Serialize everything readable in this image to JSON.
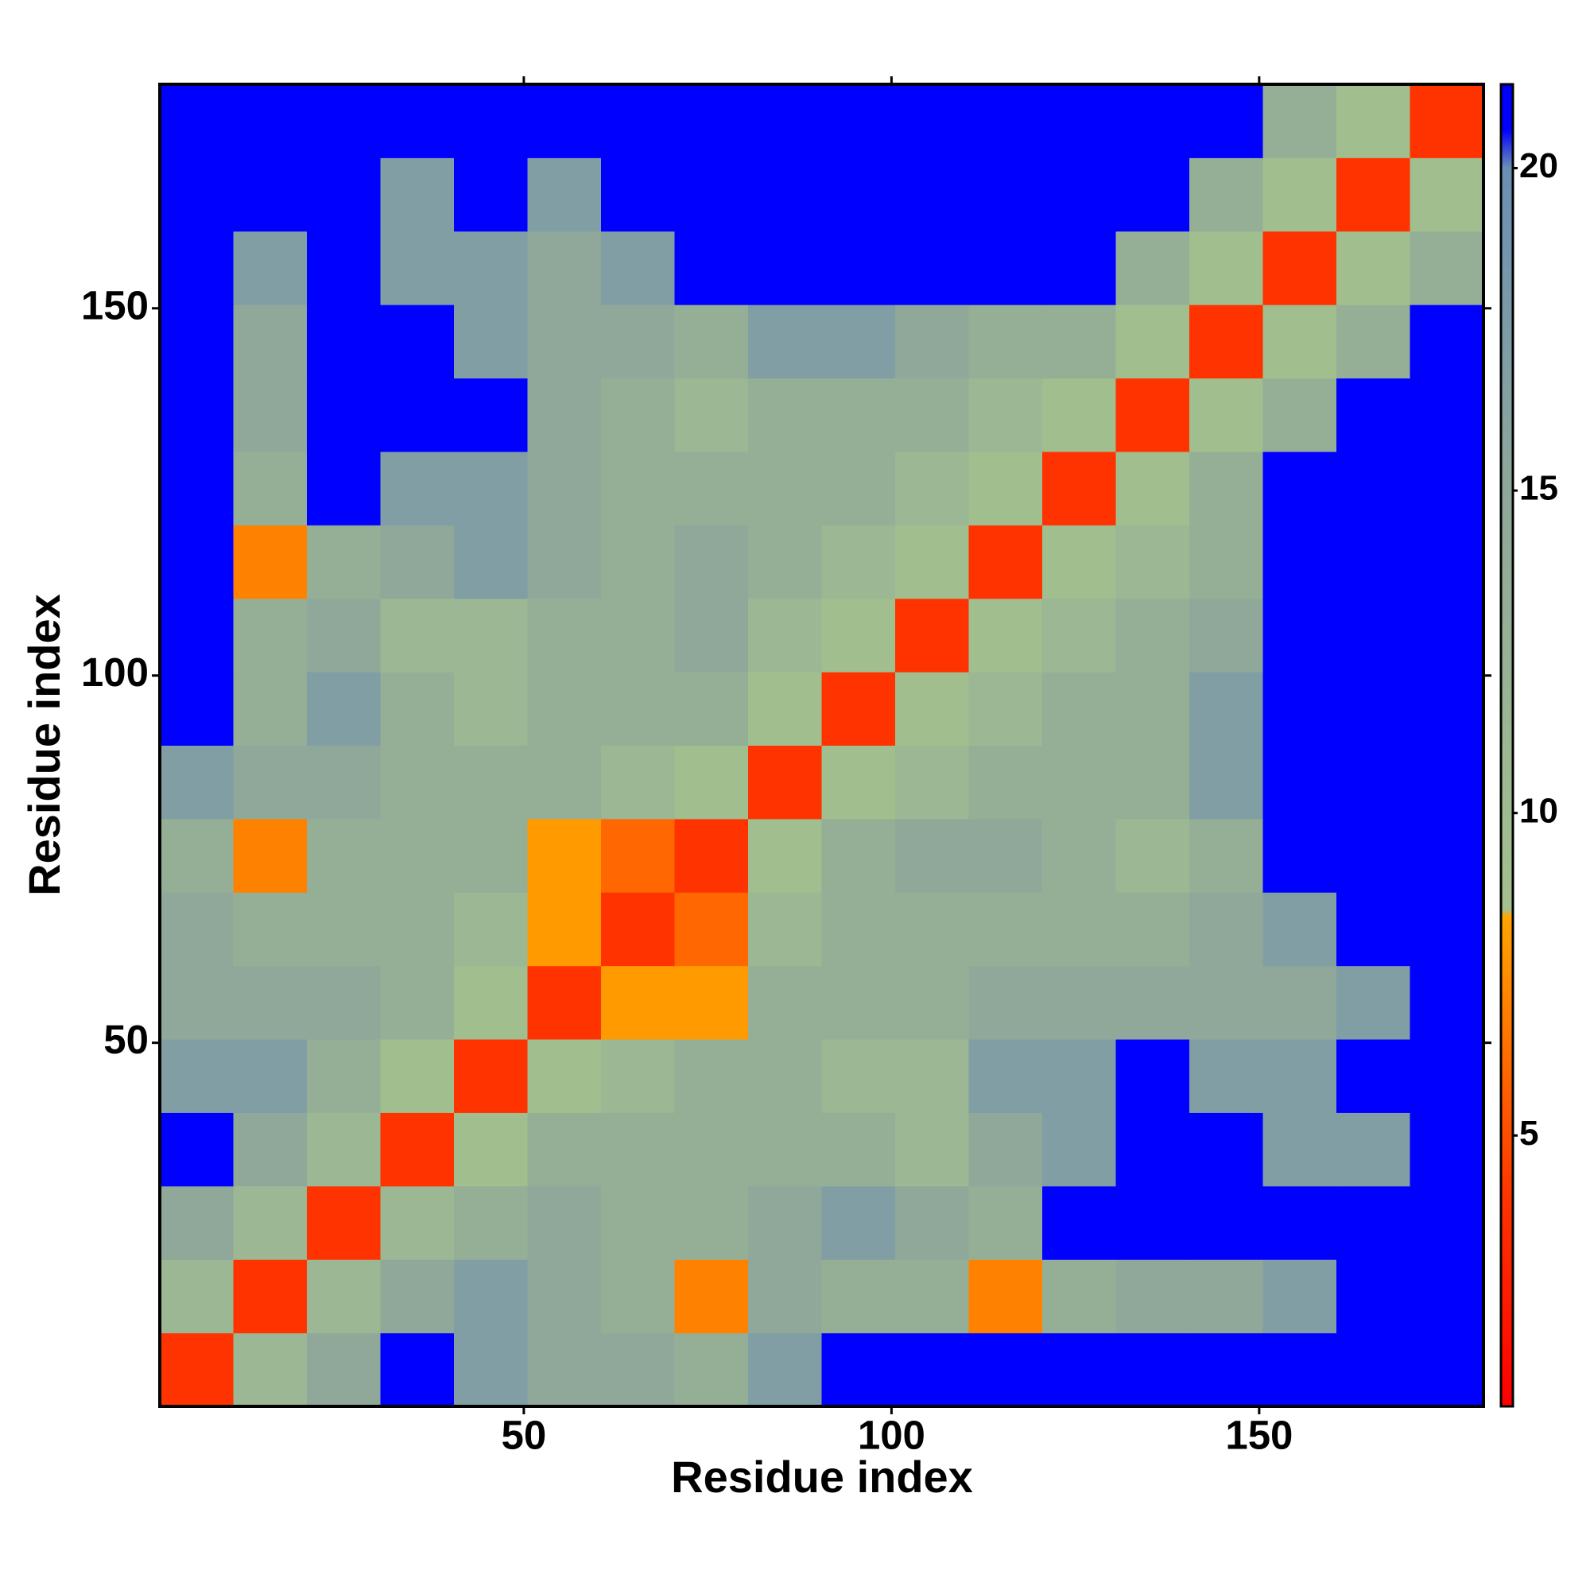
{
  "chart_data": {
    "type": "heatmap",
    "x_label": "Residue index",
    "y_label": "Residue index",
    "x": [
      5.5,
      15.5,
      25.5,
      35.5,
      45.5,
      55.5,
      65.5,
      75.5,
      85.5,
      95.5,
      105.5,
      115.5,
      125.5,
      135.5,
      145.5,
      155.5,
      165.5,
      175.5
    ],
    "y": [
      5.5,
      15.5,
      25.5,
      35.5,
      45.5,
      55.5,
      65.5,
      75.5,
      85.5,
      95.5,
      105.5,
      115.5,
      125.5,
      135.5,
      145.5,
      155.5,
      165.5,
      175.5
    ],
    "xlim": [
      0.5,
      180.5
    ],
    "ylim": [
      0.5,
      180.5
    ],
    "xticks": [
      50,
      100,
      150
    ],
    "yticks": [
      50,
      100,
      150
    ],
    "z": [
      [
        4,
        11,
        15,
        21,
        17,
        15,
        15,
        13,
        17,
        21,
        21,
        21,
        21,
        21,
        21,
        21,
        21,
        21
      ],
      [
        11,
        4,
        11,
        15,
        17,
        15,
        13,
        7,
        15,
        13,
        13,
        7,
        13,
        15,
        15,
        17,
        21,
        21
      ],
      [
        15,
        11,
        4,
        11,
        13,
        15,
        13,
        13,
        15,
        17,
        15,
        13,
        21,
        21,
        21,
        21,
        21,
        21
      ],
      [
        21,
        15,
        11,
        4,
        9,
        13,
        13,
        13,
        13,
        13,
        11,
        15,
        17,
        21,
        21,
        17,
        17,
        21
      ],
      [
        17,
        17,
        13,
        9,
        4,
        9,
        11,
        13,
        13,
        11,
        11,
        17,
        17,
        21,
        17,
        17,
        21,
        21
      ],
      [
        15,
        15,
        15,
        13,
        9,
        4,
        8,
        8,
        13,
        13,
        13,
        15,
        15,
        15,
        15,
        15,
        17,
        21
      ],
      [
        15,
        13,
        13,
        13,
        11,
        8,
        4,
        6,
        11,
        13,
        13,
        13,
        13,
        13,
        15,
        17,
        21,
        21
      ],
      [
        13,
        7,
        13,
        13,
        13,
        8,
        6,
        4,
        9,
        13,
        15,
        15,
        13,
        11,
        13,
        21,
        21,
        21
      ],
      [
        17,
        15,
        15,
        13,
        13,
        13,
        11,
        9,
        4,
        9,
        11,
        13,
        13,
        13,
        17,
        21,
        21,
        21
      ],
      [
        21,
        13,
        17,
        13,
        11,
        13,
        13,
        13,
        9,
        4,
        9,
        11,
        13,
        13,
        17,
        21,
        21,
        21
      ],
      [
        21,
        13,
        15,
        11,
        11,
        13,
        13,
        15,
        11,
        9,
        4,
        9,
        11,
        13,
        15,
        21,
        21,
        21
      ],
      [
        21,
        7,
        13,
        15,
        17,
        15,
        13,
        15,
        13,
        11,
        9,
        4,
        9,
        11,
        13,
        21,
        21,
        21
      ],
      [
        21,
        13,
        21,
        17,
        17,
        15,
        13,
        13,
        13,
        13,
        11,
        9,
        4,
        9,
        13,
        21,
        21,
        21
      ],
      [
        21,
        15,
        21,
        21,
        21,
        15,
        13,
        11,
        13,
        13,
        13,
        11,
        9,
        4,
        9,
        13,
        21,
        21
      ],
      [
        21,
        15,
        21,
        21,
        17,
        15,
        15,
        13,
        17,
        17,
        15,
        13,
        13,
        9,
        4,
        9,
        13,
        21
      ],
      [
        21,
        17,
        21,
        17,
        17,
        15,
        17,
        21,
        21,
        21,
        21,
        21,
        21,
        13,
        9,
        4,
        9,
        13
      ],
      [
        21,
        21,
        21,
        17,
        21,
        17,
        21,
        21,
        21,
        21,
        21,
        21,
        21,
        21,
        13,
        9,
        4,
        9
      ],
      [
        21,
        21,
        21,
        21,
        21,
        21,
        21,
        21,
        21,
        21,
        21,
        21,
        21,
        21,
        21,
        13,
        9,
        4
      ]
    ],
    "zlim": [
      0.8,
      21.3
    ],
    "zticks": [
      5,
      10,
      15,
      20
    ],
    "colorscale": [
      [
        0.8,
        "#ff0000"
      ],
      [
        4,
        "#ff3300"
      ],
      [
        8.4,
        "#ffa500"
      ],
      [
        8.5,
        "#a3c08e"
      ],
      [
        15,
        "#8fa89a"
      ],
      [
        20,
        "#6a8fb4"
      ],
      [
        20.6,
        "#0000ff"
      ],
      [
        21.3,
        "#0000ff"
      ]
    ]
  }
}
